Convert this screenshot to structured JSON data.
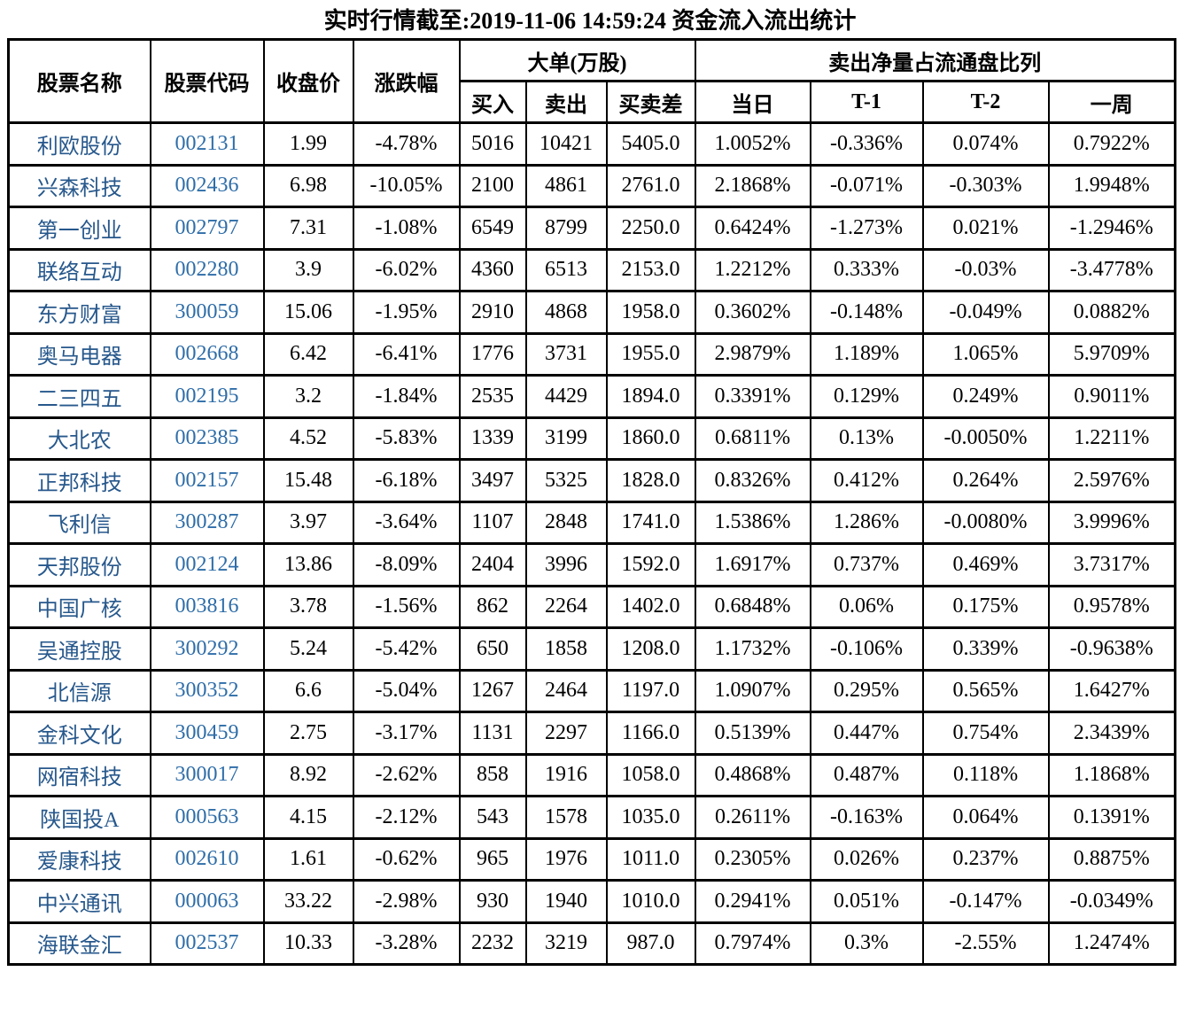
{
  "title": "实时行情截至:2019-11-06 14:59:24 资金流入流出统计",
  "colors": {
    "stock_name_text": "#27588C",
    "stock_code_text": "#2E6DA8",
    "number_text": "#000000",
    "border": "#000000",
    "background": "#FFFFFF"
  },
  "chart_data": {
    "type": "table",
    "title": "实时行情截至:2019-11-06 14:59:24 资金流入流出统计",
    "header": {
      "col_stock_name": "股票名称",
      "col_stock_code": "股票代码",
      "col_close_price": "收盘价",
      "col_change_pct": "涨跌幅",
      "group_large_orders": "大单(万股)",
      "col_buy": "买入",
      "col_sell": "卖出",
      "col_buy_sell_diff": "买卖差",
      "group_net_sell_ratio": "卖出净量占流通盘比列",
      "col_current_day": "当日",
      "col_t1": "T-1",
      "col_t2": "T-2",
      "col_one_week": "一周"
    },
    "cell_names": [
      "stock-name-cell",
      "stock-code-cell",
      "close-price-cell",
      "change-pct-cell",
      "buy-cell",
      "sell-cell",
      "buy-sell-diff-cell",
      "current-day-cell",
      "t1-cell",
      "t2-cell",
      "one-week-cell"
    ],
    "rows": [
      [
        "利欧股份",
        "002131",
        "1.99",
        "-4.78%",
        "5016",
        "10421",
        "5405.0",
        "1.0052%",
        "-0.336%",
        "0.074%",
        "0.7922%"
      ],
      [
        "兴森科技",
        "002436",
        "6.98",
        "-10.05%",
        "2100",
        "4861",
        "2761.0",
        "2.1868%",
        "-0.071%",
        "-0.303%",
        "1.9948%"
      ],
      [
        "第一创业",
        "002797",
        "7.31",
        "-1.08%",
        "6549",
        "8799",
        "2250.0",
        "0.6424%",
        "-1.273%",
        "0.021%",
        "-1.2946%"
      ],
      [
        "联络互动",
        "002280",
        "3.9",
        "-6.02%",
        "4360",
        "6513",
        "2153.0",
        "1.2212%",
        "0.333%",
        "-0.03%",
        "-3.4778%"
      ],
      [
        "东方财富",
        "300059",
        "15.06",
        "-1.95%",
        "2910",
        "4868",
        "1958.0",
        "0.3602%",
        "-0.148%",
        "-0.049%",
        "0.0882%"
      ],
      [
        "奥马电器",
        "002668",
        "6.42",
        "-6.41%",
        "1776",
        "3731",
        "1955.0",
        "2.9879%",
        "1.189%",
        "1.065%",
        "5.9709%"
      ],
      [
        "二三四五",
        "002195",
        "3.2",
        "-1.84%",
        "2535",
        "4429",
        "1894.0",
        "0.3391%",
        "0.129%",
        "0.249%",
        "0.9011%"
      ],
      [
        "大北农",
        "002385",
        "4.52",
        "-5.83%",
        "1339",
        "3199",
        "1860.0",
        "0.6811%",
        "0.13%",
        "-0.0050%",
        "1.2211%"
      ],
      [
        "正邦科技",
        "002157",
        "15.48",
        "-6.18%",
        "3497",
        "5325",
        "1828.0",
        "0.8326%",
        "0.412%",
        "0.264%",
        "2.5976%"
      ],
      [
        "飞利信",
        "300287",
        "3.97",
        "-3.64%",
        "1107",
        "2848",
        "1741.0",
        "1.5386%",
        "1.286%",
        "-0.0080%",
        "3.9996%"
      ],
      [
        "天邦股份",
        "002124",
        "13.86",
        "-8.09%",
        "2404",
        "3996",
        "1592.0",
        "1.6917%",
        "0.737%",
        "0.469%",
        "3.7317%"
      ],
      [
        "中国广核",
        "003816",
        "3.78",
        "-1.56%",
        "862",
        "2264",
        "1402.0",
        "0.6848%",
        "0.06%",
        "0.175%",
        "0.9578%"
      ],
      [
        "吴通控股",
        "300292",
        "5.24",
        "-5.42%",
        "650",
        "1858",
        "1208.0",
        "1.1732%",
        "-0.106%",
        "0.339%",
        "-0.9638%"
      ],
      [
        "北信源",
        "300352",
        "6.6",
        "-5.04%",
        "1267",
        "2464",
        "1197.0",
        "1.0907%",
        "0.295%",
        "0.565%",
        "1.6427%"
      ],
      [
        "金科文化",
        "300459",
        "2.75",
        "-3.17%",
        "1131",
        "2297",
        "1166.0",
        "0.5139%",
        "0.447%",
        "0.754%",
        "2.3439%"
      ],
      [
        "网宿科技",
        "300017",
        "8.92",
        "-2.62%",
        "858",
        "1916",
        "1058.0",
        "0.4868%",
        "0.487%",
        "0.118%",
        "1.1868%"
      ],
      [
        "陕国投A",
        "000563",
        "4.15",
        "-2.12%",
        "543",
        "1578",
        "1035.0",
        "0.2611%",
        "-0.163%",
        "0.064%",
        "0.1391%"
      ],
      [
        "爱康科技",
        "002610",
        "1.61",
        "-0.62%",
        "965",
        "1976",
        "1011.0",
        "0.2305%",
        "0.026%",
        "0.237%",
        "0.8875%"
      ],
      [
        "中兴通讯",
        "000063",
        "33.22",
        "-2.98%",
        "930",
        "1940",
        "1010.0",
        "0.2941%",
        "0.051%",
        "-0.147%",
        "-0.0349%"
      ],
      [
        "海联金汇",
        "002537",
        "10.33",
        "-3.28%",
        "2232",
        "3219",
        "987.0",
        "0.7974%",
        "0.3%",
        "-2.55%",
        "1.2474%"
      ]
    ]
  }
}
